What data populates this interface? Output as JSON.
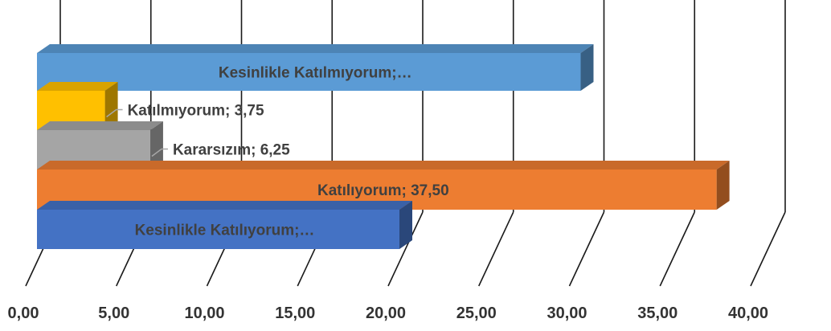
{
  "chart_data": {
    "type": "bar",
    "orientation": "horizontal",
    "three_d": true,
    "xlim": [
      0,
      40
    ],
    "x_tick_labels": [
      "0,00",
      "5,00",
      "10,00",
      "15,00",
      "20,00",
      "25,00",
      "30,00",
      "35,00",
      "40,00"
    ],
    "grid": true,
    "legend": "none",
    "categories": [
      "Kesinlikle Katılmıyorum",
      "Katılmıyorum",
      "Kararsızım",
      "Katılıyorum",
      "Kesinlikle Katılıyorum"
    ],
    "values": [
      30.0,
      3.75,
      6.25,
      37.5,
      20.0
    ],
    "data_labels": [
      "Kesinlikle Katılmıyorum;…",
      "Katılmıyorum; 3,75",
      "Kararsızım; 6,25",
      "Katılıyorum; 37,50",
      "Kesinlikle Katılıyorum;…"
    ],
    "colors": [
      "#5B9BD5",
      "#FFC000",
      "#A5A5A5",
      "#ED7D31",
      "#4472C4"
    ]
  }
}
